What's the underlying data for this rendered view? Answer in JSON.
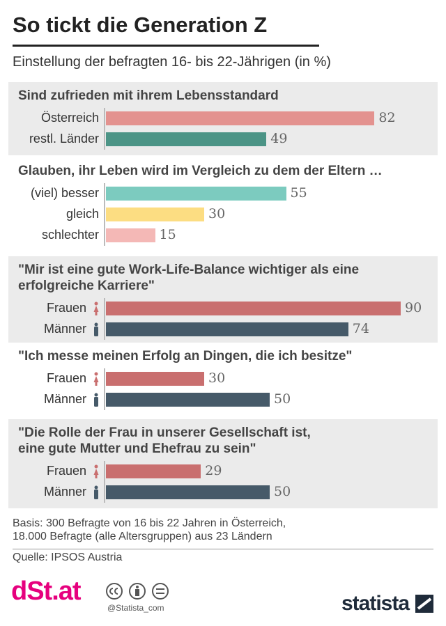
{
  "title": "So tickt die Generation Z",
  "subtitle": "Einstellung der befragten 16- bis 22-Jährigen (in %)",
  "chart_data": [
    {
      "type": "bar",
      "title": "Sind zufrieden mit ihrem Lebensstandard",
      "categories": [
        "Österreich",
        "restl. Länder"
      ],
      "values": [
        82,
        49
      ],
      "colors": [
        "#e3928f",
        "#4c9486"
      ]
    },
    {
      "type": "bar",
      "title": "Glauben, ihr Leben wird im Vergleich zu dem der Eltern …",
      "categories": [
        "(viel) besser",
        "gleich",
        "schlechter"
      ],
      "values": [
        55,
        30,
        15
      ],
      "colors": [
        "#7ccbbf",
        "#fcdd82",
        "#f4b8b6"
      ]
    },
    {
      "type": "bar",
      "title": "\"Mir ist eine gute Work-Life-Balance wichtiger als eine\nerfolgreiche Karriere\"",
      "categories": [
        "Frauen",
        "Männer"
      ],
      "values": [
        90,
        74
      ],
      "colors": [
        "#c96f6f",
        "#465a69"
      ],
      "icons": true
    },
    {
      "type": "bar",
      "title": "\"Ich messe meinen Erfolg an Dingen, die ich besitze\"",
      "categories": [
        "Frauen",
        "Männer"
      ],
      "values": [
        30,
        50
      ],
      "colors": [
        "#c96f6f",
        "#465a69"
      ],
      "icons": true
    },
    {
      "type": "bar",
      "title": "\"Die Rolle der Frau in unserer Gesellschaft ist,\neine gute Mutter und Ehefrau zu sein\"",
      "categories": [
        "Frauen",
        "Männer"
      ],
      "values": [
        29,
        50
      ],
      "colors": [
        "#c96f6f",
        "#465a69"
      ],
      "icons": true
    }
  ],
  "footer": {
    "basis": "Basis: 300 Befragte von 16 bis 22 Jahren in Österreich,\n18.000 Befragte (alle Altersgruppen) aus 23 Ländern",
    "source": "Quelle: IPSOS Austria",
    "brand": "dSt.at",
    "handle": "@Statista_com",
    "logo": "statista"
  }
}
